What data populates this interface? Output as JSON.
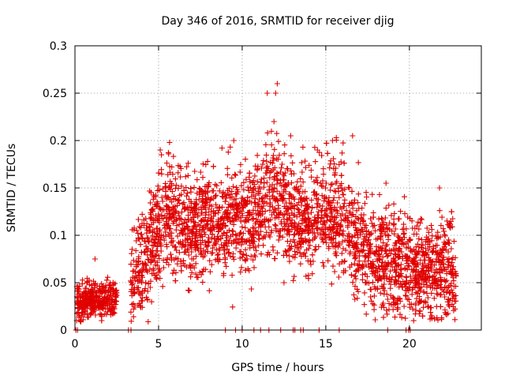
{
  "chart_data": {
    "type": "scatter",
    "title": "Day 346 of 2016, SRMTID for receiver djig",
    "xlabel": "GPS time / hours",
    "ylabel": "SRMTID / TECUs",
    "xlim": [
      0,
      24.3
    ],
    "ylim": [
      0,
      0.3
    ],
    "x_ticks": [
      0,
      5,
      10,
      15,
      20
    ],
    "y_ticks": [
      0,
      0.05,
      0.1,
      0.15,
      0.2,
      0.25,
      0.3
    ],
    "x_tick_labels": [
      "0",
      "5",
      "10",
      "15",
      "20"
    ],
    "y_tick_labels": [
      "0",
      "0.05",
      "0.1",
      "0.15",
      "0.2",
      "0.25",
      "0.3"
    ],
    "grid": true,
    "marker": "+",
    "marker_color": "#e00000",
    "series": [
      {
        "name": "SRMTID",
        "trend": [
          [
            0.1,
            0.03
          ],
          [
            0.5,
            0.03
          ],
          [
            1.0,
            0.035
          ],
          [
            1.5,
            0.032
          ],
          [
            2.0,
            0.033
          ],
          [
            2.4,
            0.035
          ],
          [
            3.3,
            0.055
          ],
          [
            4.0,
            0.065
          ],
          [
            4.5,
            0.085
          ],
          [
            5.0,
            0.11
          ],
          [
            5.5,
            0.125
          ],
          [
            6.0,
            0.12
          ],
          [
            7.0,
            0.11
          ],
          [
            8.0,
            0.115
          ],
          [
            9.0,
            0.115
          ],
          [
            10.0,
            0.11
          ],
          [
            11.0,
            0.125
          ],
          [
            12.0,
            0.14
          ],
          [
            13.0,
            0.12
          ],
          [
            14.0,
            0.115
          ],
          [
            15.0,
            0.13
          ],
          [
            16.0,
            0.12
          ],
          [
            17.0,
            0.09
          ],
          [
            18.0,
            0.075
          ],
          [
            19.0,
            0.07
          ],
          [
            20.0,
            0.07
          ],
          [
            21.0,
            0.06
          ],
          [
            22.0,
            0.065
          ],
          [
            22.8,
            0.06
          ]
        ],
        "gaps": [
          [
            2.5,
            3.3
          ]
        ],
        "notable_points": [
          [
            1.2,
            0.075
          ],
          [
            5.1,
            0.19
          ],
          [
            9.5,
            0.2
          ],
          [
            11.5,
            0.25
          ],
          [
            12.1,
            0.26
          ],
          [
            12.0,
            0.25
          ],
          [
            11.9,
            0.22
          ],
          [
            12.9,
            0.205
          ],
          [
            14.5,
            0.19
          ],
          [
            15.4,
            0.2
          ],
          [
            16.6,
            0.205
          ],
          [
            21.8,
            0.15
          ],
          [
            18.6,
            0.155
          ],
          [
            0.1,
            0.01
          ],
          [
            4.5,
            0.045
          ],
          [
            12.5,
            0.05
          ]
        ],
        "zero_points_x": [
          0.05,
          0.15,
          3.2,
          3.35,
          9.0,
          9.6,
          10.0,
          10.7,
          11.1,
          11.6,
          12.3,
          13.05,
          13.15,
          13.5,
          13.65,
          14.6,
          15.8,
          18.7,
          19.8,
          19.95,
          20.05
        ],
        "point_density_per_hour": 150
      }
    ]
  }
}
